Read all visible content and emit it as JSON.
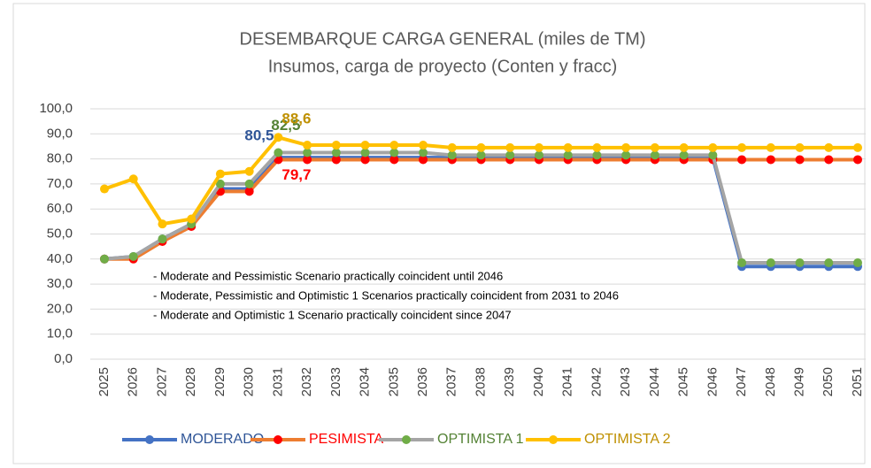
{
  "chart_data": {
    "type": "line",
    "title": "DESEMBARQUE CARGA GENERAL (miles de TM)",
    "subtitle": "Insumos, carga de proyecto (Conten y fracc)",
    "annotations": [
      "- Moderate and Pessimistic Scenario practically coincident until 2046",
      "- Moderate, Pessimistic and Optimistic  1 Scenarios practically coincident from 2031 to 2046",
      "- Moderate and Optimistic 1  Scenario practically coincident since 2047"
    ],
    "categories": [
      "2025",
      "2026",
      "2027",
      "2028",
      "2029",
      "2030",
      "2031",
      "2032",
      "2033",
      "2034",
      "2035",
      "2036",
      "2037",
      "2038",
      "2039",
      "2040",
      "2041",
      "2042",
      "2043",
      "2044",
      "2045",
      "2046",
      "2047",
      "2048",
      "2049",
      "2050",
      "2051"
    ],
    "ylim": [
      0,
      100
    ],
    "yticks": [
      {
        "value": 0,
        "label": "0,0"
      },
      {
        "value": 10,
        "label": "10,0"
      },
      {
        "value": 20,
        "label": "20,0"
      },
      {
        "value": 30,
        "label": "30,0"
      },
      {
        "value": 40,
        "label": "40,0"
      },
      {
        "value": 50,
        "label": "50,0"
      },
      {
        "value": 60,
        "label": "60,0"
      },
      {
        "value": 70,
        "label": "70,0"
      },
      {
        "value": 80,
        "label": "80,0"
      },
      {
        "value": 90,
        "label": "90,0"
      },
      {
        "value": 100,
        "label": "100,0"
      }
    ],
    "grid": true,
    "legend": "bottom",
    "series": [
      {
        "name": "MODERADO",
        "color": "#4472c4",
        "marker_color": "#4472c4",
        "label_color": "#2f5597",
        "values": [
          40,
          41,
          48,
          54,
          68,
          68,
          80.5,
          80.5,
          80.5,
          80.5,
          80.5,
          80.5,
          80.5,
          80.5,
          80.5,
          80.5,
          80.5,
          80.5,
          80.5,
          80.5,
          80.5,
          80.5,
          37,
          37,
          37,
          37,
          37
        ],
        "value_labels": [
          null,
          null,
          null,
          null,
          null,
          null,
          "80,5",
          null,
          null,
          null,
          null,
          null,
          null,
          null,
          null,
          null,
          null,
          null,
          null,
          null,
          null,
          null,
          null,
          null,
          null,
          null,
          null
        ]
      },
      {
        "name": "PESIMISTA",
        "color": "#ed7d31",
        "marker_color": "#ff0000",
        "label_color": "#ff0000",
        "values": [
          40,
          40,
          47,
          53,
          67,
          67,
          79.7,
          79.7,
          79.7,
          79.7,
          79.7,
          79.7,
          79.7,
          79.7,
          79.7,
          79.7,
          79.7,
          79.7,
          79.7,
          79.7,
          79.7,
          79.7,
          79.7,
          79.7,
          79.7,
          79.7,
          79.7
        ],
        "value_labels": [
          null,
          null,
          null,
          null,
          null,
          null,
          "79,7",
          null,
          null,
          null,
          null,
          null,
          null,
          null,
          null,
          null,
          null,
          null,
          null,
          null,
          null,
          null,
          null,
          null,
          null,
          null,
          null
        ]
      },
      {
        "name": "OPTIMISTA 1",
        "color": "#a5a5a5",
        "marker_color": "#70ad47",
        "label_color": "#548235",
        "values": [
          40,
          41,
          48,
          54,
          70,
          70,
          82.5,
          82.5,
          82.5,
          82.5,
          82.5,
          82.5,
          81.5,
          81.5,
          81.5,
          81.5,
          81.5,
          81.5,
          81.5,
          81.5,
          81.5,
          81.5,
          38.5,
          38.5,
          38.5,
          38.5,
          38.5
        ],
        "value_labels": [
          null,
          null,
          null,
          null,
          null,
          null,
          "82,5",
          null,
          null,
          null,
          null,
          null,
          null,
          null,
          null,
          null,
          null,
          null,
          null,
          null,
          null,
          null,
          null,
          null,
          null,
          null,
          null
        ]
      },
      {
        "name": "OPTIMISTA 2",
        "color": "#ffc000",
        "marker_color": "#ffc000",
        "label_color": "#bf9000",
        "values": [
          68,
          72,
          54,
          56,
          74,
          75,
          88.6,
          85.5,
          85.5,
          85.5,
          85.5,
          85.5,
          84.5,
          84.5,
          84.5,
          84.5,
          84.5,
          84.5,
          84.5,
          84.5,
          84.5,
          84.5,
          84.5,
          84.5,
          84.5,
          84.5,
          84.5
        ],
        "value_labels": [
          null,
          null,
          null,
          null,
          null,
          null,
          "88,6",
          null,
          null,
          null,
          null,
          null,
          null,
          null,
          null,
          null,
          null,
          null,
          null,
          null,
          null,
          null,
          null,
          null,
          null,
          null,
          null
        ]
      }
    ]
  }
}
